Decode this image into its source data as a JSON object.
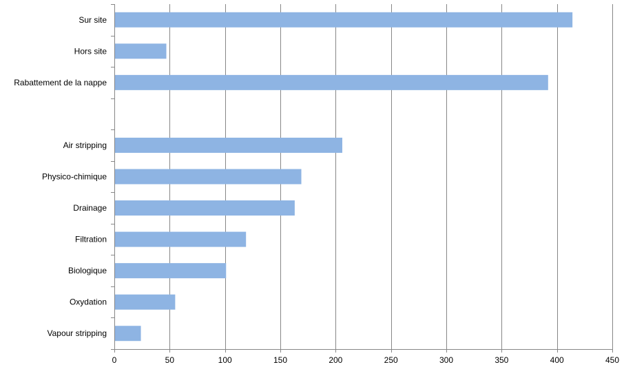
{
  "chart_data": {
    "type": "bar",
    "orientation": "horizontal",
    "categories": [
      "Sur site",
      "Hors site",
      "Rabattement de la nappe",
      "",
      "Air stripping",
      "Physico-chimique",
      "Drainage",
      "Filtration",
      "Biologique",
      "Oxydation",
      "Vapour stripping"
    ],
    "values": [
      414,
      47,
      392,
      null,
      206,
      169,
      163,
      119,
      101,
      55,
      24
    ],
    "xlim": [
      0,
      450
    ],
    "xticks": [
      "0",
      "50",
      "100",
      "150",
      "200",
      "250",
      "300",
      "350",
      "400",
      "450"
    ],
    "grid": true,
    "legend": "none",
    "bar_color": "#8eb4e3",
    "title": "",
    "xlabel": "",
    "ylabel": ""
  }
}
